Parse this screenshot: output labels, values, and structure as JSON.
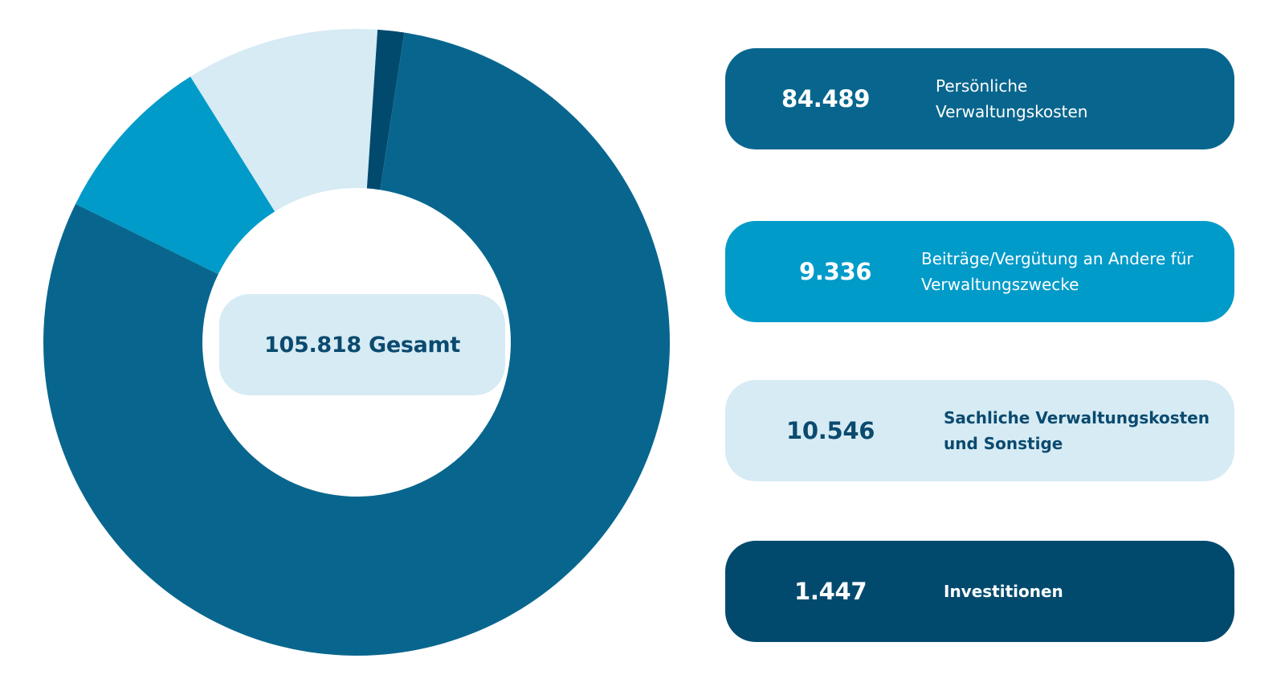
{
  "chart_data": {
    "type": "pie",
    "title": "",
    "center_label": "105.818 Gesamt",
    "total": 105818,
    "series": [
      {
        "label": "Persönliche\nVerwaltungskosten",
        "value": 84489,
        "value_label": "84.489",
        "color": "#08668E",
        "text_color": "#FFFFFF"
      },
      {
        "label": "Beiträge/Vergütung an Andere für\nVerwaltungszwecke",
        "value": 9336,
        "value_label": "9.336",
        "color": "#019BC9",
        "text_color": "#FFFFFF"
      },
      {
        "label": "Sachliche Verwaltungskosten\nund Sonstige",
        "value": 10546,
        "value_label": "10.546",
        "color": "#D6EBF4",
        "text_color": "#0B4A6F"
      },
      {
        "label": "Investitionen",
        "value": 1447,
        "value_label": "1.447",
        "color": "#014A6E",
        "text_color": "#FFFFFF"
      }
    ],
    "center_pill_color": "#D6EBF4",
    "center_text_color": "#0B4A6F",
    "legend_placement": "right"
  }
}
